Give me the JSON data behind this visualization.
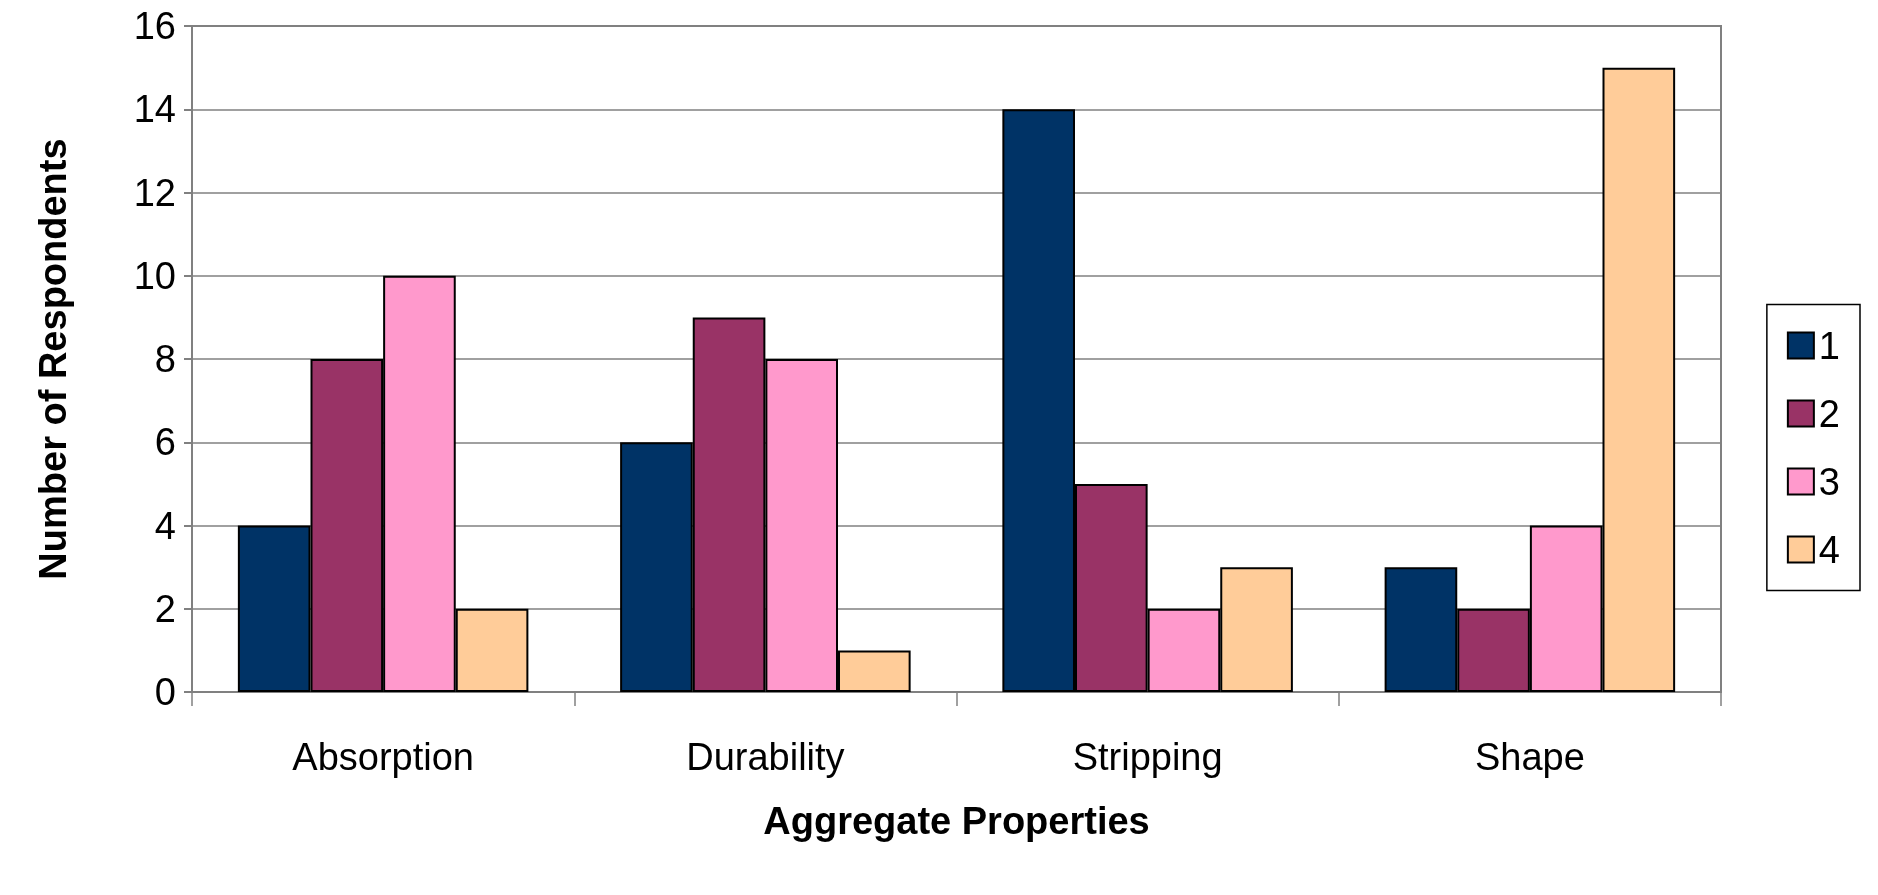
{
  "chart_data": {
    "type": "bar",
    "xlabel": "Aggregate Properties",
    "ylabel": "Number of Respondents",
    "categories": [
      "Absorption",
      "Durability",
      "Stripping",
      "Shape"
    ],
    "series": [
      {
        "name": "1",
        "color": "#003366",
        "values": [
          4,
          6,
          14,
          3
        ]
      },
      {
        "name": "2",
        "color": "#993366",
        "values": [
          8,
          9,
          5,
          2
        ]
      },
      {
        "name": "3",
        "color": "#ff99cc",
        "values": [
          10,
          8,
          2,
          4
        ]
      },
      {
        "name": "4",
        "color": "#ffcc99",
        "values": [
          2,
          1,
          3,
          15
        ]
      }
    ],
    "ylim": [
      0,
      16
    ],
    "yticks": [
      0,
      2,
      4,
      6,
      8,
      10,
      12,
      14,
      16
    ],
    "grid": "y",
    "legend": "right"
  }
}
